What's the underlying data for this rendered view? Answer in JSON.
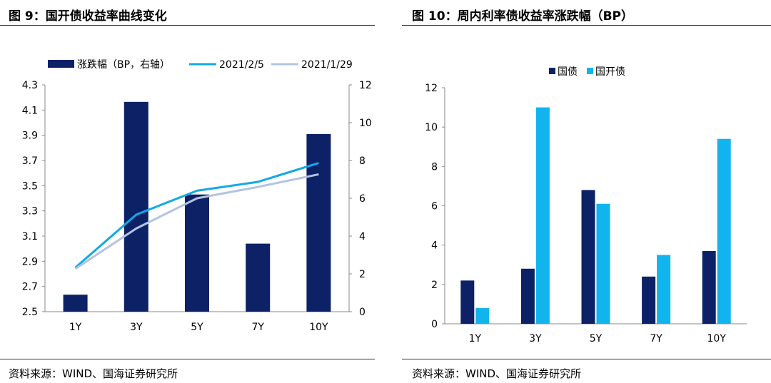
{
  "left": {
    "title": "图 9：国开债收益率曲线变化",
    "source": "资料来源：WIND、国海证券研究所"
  },
  "right": {
    "title": "图 10：周内利率债收益率涨跌幅（BP）",
    "source": "资料来源：WIND、国海证券研究所"
  },
  "chart_data": [
    {
      "type": "bar",
      "categories": [
        "1Y",
        "3Y",
        "5Y",
        "7Y",
        "10Y"
      ],
      "series": [
        {
          "name": "涨跌幅（BP，右轴）",
          "kind": "bar",
          "axis": "right",
          "color": "#0d2266",
          "values": [
            0.9,
            11.1,
            6.2,
            3.6,
            9.4
          ]
        },
        {
          "name": "2021/2/5",
          "kind": "line",
          "axis": "left",
          "color": "#12a9e6",
          "values": [
            2.85,
            3.27,
            3.46,
            3.53,
            3.68
          ]
        },
        {
          "name": "2021/1/29",
          "kind": "line",
          "axis": "left",
          "color": "#b3c3e3",
          "values": [
            2.84,
            3.16,
            3.4,
            3.49,
            3.59
          ]
        }
      ],
      "ylim": [
        2.5,
        4.3
      ],
      "yticks": [
        "4.3",
        "4.1",
        "3.9",
        "3.7",
        "3.5",
        "3.3",
        "3.1",
        "2.9",
        "2.7",
        "2.5"
      ],
      "y2lim": [
        0,
        12
      ],
      "y2ticks": [
        "12",
        "10",
        "8",
        "6",
        "4",
        "2",
        "0"
      ],
      "legend": "top"
    },
    {
      "type": "bar",
      "categories": [
        "1Y",
        "3Y",
        "5Y",
        "7Y",
        "10Y"
      ],
      "series": [
        {
          "name": "国债",
          "color": "#0d2266",
          "values": [
            2.2,
            2.8,
            6.8,
            2.4,
            3.7
          ]
        },
        {
          "name": "国开债",
          "color": "#12b4ee",
          "values": [
            0.8,
            11.0,
            6.1,
            3.5,
            9.4
          ]
        }
      ],
      "ylim": [
        0,
        12
      ],
      "yticks": [
        "12",
        "10",
        "8",
        "6",
        "4",
        "2",
        "0"
      ],
      "legend": "top"
    }
  ]
}
